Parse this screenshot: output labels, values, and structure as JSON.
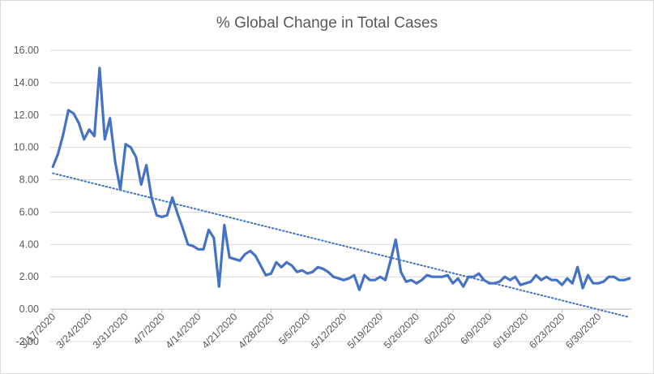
{
  "chart_data": {
    "type": "line",
    "title": "% Global Change in Total Cases",
    "xlabel": "",
    "ylabel": "",
    "ylim": [
      -2,
      16
    ],
    "y_ticks": [
      "16.00",
      "14.00",
      "12.00",
      "10.00",
      "8.00",
      "6.00",
      "4.00",
      "2.00",
      "0.00",
      "-2.00"
    ],
    "x_tick_labels": [
      "3/17/2020",
      "3/24/2020",
      "3/31/2020",
      "4/7/2020",
      "4/14/2020",
      "4/21/2020",
      "4/28/2020",
      "5/5/2020",
      "5/12/2020",
      "5/19/2020",
      "5/26/2020",
      "6/2/2020",
      "6/9/2020",
      "6/16/2020",
      "6/23/2020",
      "6/30/2020"
    ],
    "x_start": "3/17/2020",
    "x_end": "7/6/2020",
    "grid": "horizontal",
    "legend": "none",
    "colors": {
      "series": "#4472c4",
      "trend": "#4472c4",
      "grid": "#d9d9d9"
    },
    "series": [
      {
        "values": [
          8.8,
          9.6,
          10.8,
          12.3,
          12.1,
          11.5,
          10.5,
          11.1,
          10.7,
          14.9,
          10.5,
          11.8,
          9.1,
          7.4,
          10.2,
          10.0,
          9.4,
          7.7,
          8.9,
          6.9,
          5.8,
          5.7,
          5.8,
          6.9,
          5.9,
          5.0,
          4.0,
          3.9,
          3.7,
          3.7,
          4.9,
          4.4,
          1.4,
          5.2,
          3.2,
          3.1,
          3.0,
          3.4,
          3.6,
          3.3,
          2.7,
          2.1,
          2.2,
          2.9,
          2.6,
          2.9,
          2.7,
          2.3,
          2.4,
          2.2,
          2.3,
          2.6,
          2.5,
          2.3,
          2.0,
          1.9,
          1.8,
          1.9,
          2.1,
          1.2,
          2.1,
          1.8,
          1.8,
          2.0,
          1.8,
          3.0,
          4.3,
          2.3,
          1.7,
          1.8,
          1.6,
          1.8,
          2.1,
          2.0,
          2.0,
          2.0,
          2.1,
          1.6,
          1.9,
          1.4,
          2.0,
          2.0,
          2.2,
          1.8,
          1.6,
          1.6,
          1.7,
          2.0,
          1.8,
          2.0,
          1.5,
          1.6,
          1.7,
          2.1,
          1.8,
          2.0,
          1.8,
          1.8,
          1.5,
          1.9,
          1.6,
          2.6,
          1.3,
          2.1,
          1.6,
          1.6,
          1.7,
          2.0,
          2.0,
          1.8,
          1.8,
          1.9
        ]
      }
    ],
    "trendline": {
      "type": "linear",
      "style": "dotted",
      "start_value": 8.4,
      "end_value": -0.5
    }
  }
}
